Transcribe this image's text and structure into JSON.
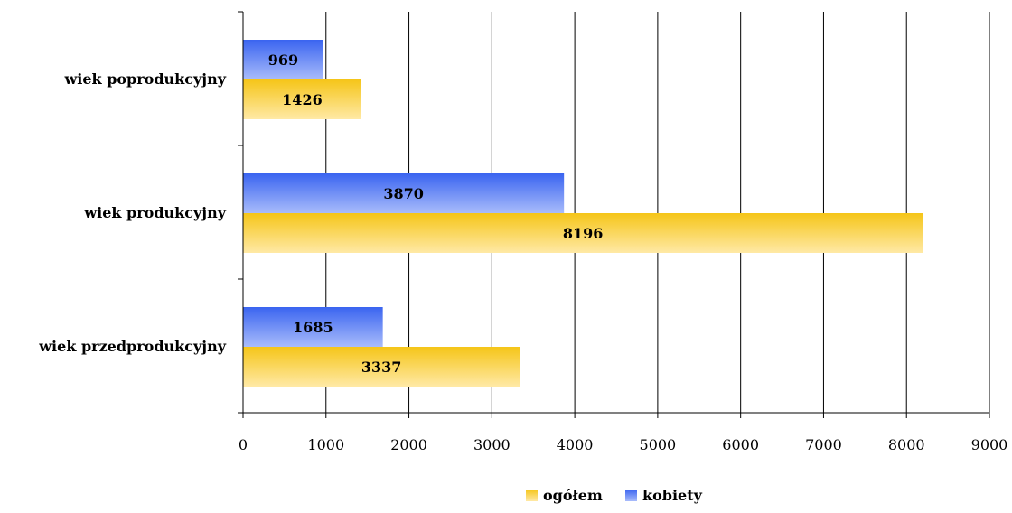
{
  "chart_data": {
    "type": "bar",
    "orientation": "horizontal",
    "categories": [
      "wiek przedprodukcyjny",
      "wiek produkcyjny",
      "wiek poprodukcyjny"
    ],
    "series": [
      {
        "name": "ogółem",
        "values": [
          3337,
          8196,
          1426
        ],
        "color": "#f5c518",
        "color_light": "#ffe9a6"
      },
      {
        "name": "kobiety",
        "values": [
          1685,
          3870,
          969
        ],
        "color": "#3a64f0",
        "color_light": "#a9bcfb"
      }
    ],
    "xlim": [
      0,
      9000
    ],
    "x_ticks": [
      "0",
      "1000",
      "2000",
      "3000",
      "4000",
      "5000",
      "6000",
      "7000",
      "8000",
      "9000"
    ],
    "grid": true,
    "legend_position": "bottom",
    "legend": [
      "ogółem",
      "kobiety"
    ],
    "title": "",
    "xlabel": "",
    "ylabel": ""
  }
}
